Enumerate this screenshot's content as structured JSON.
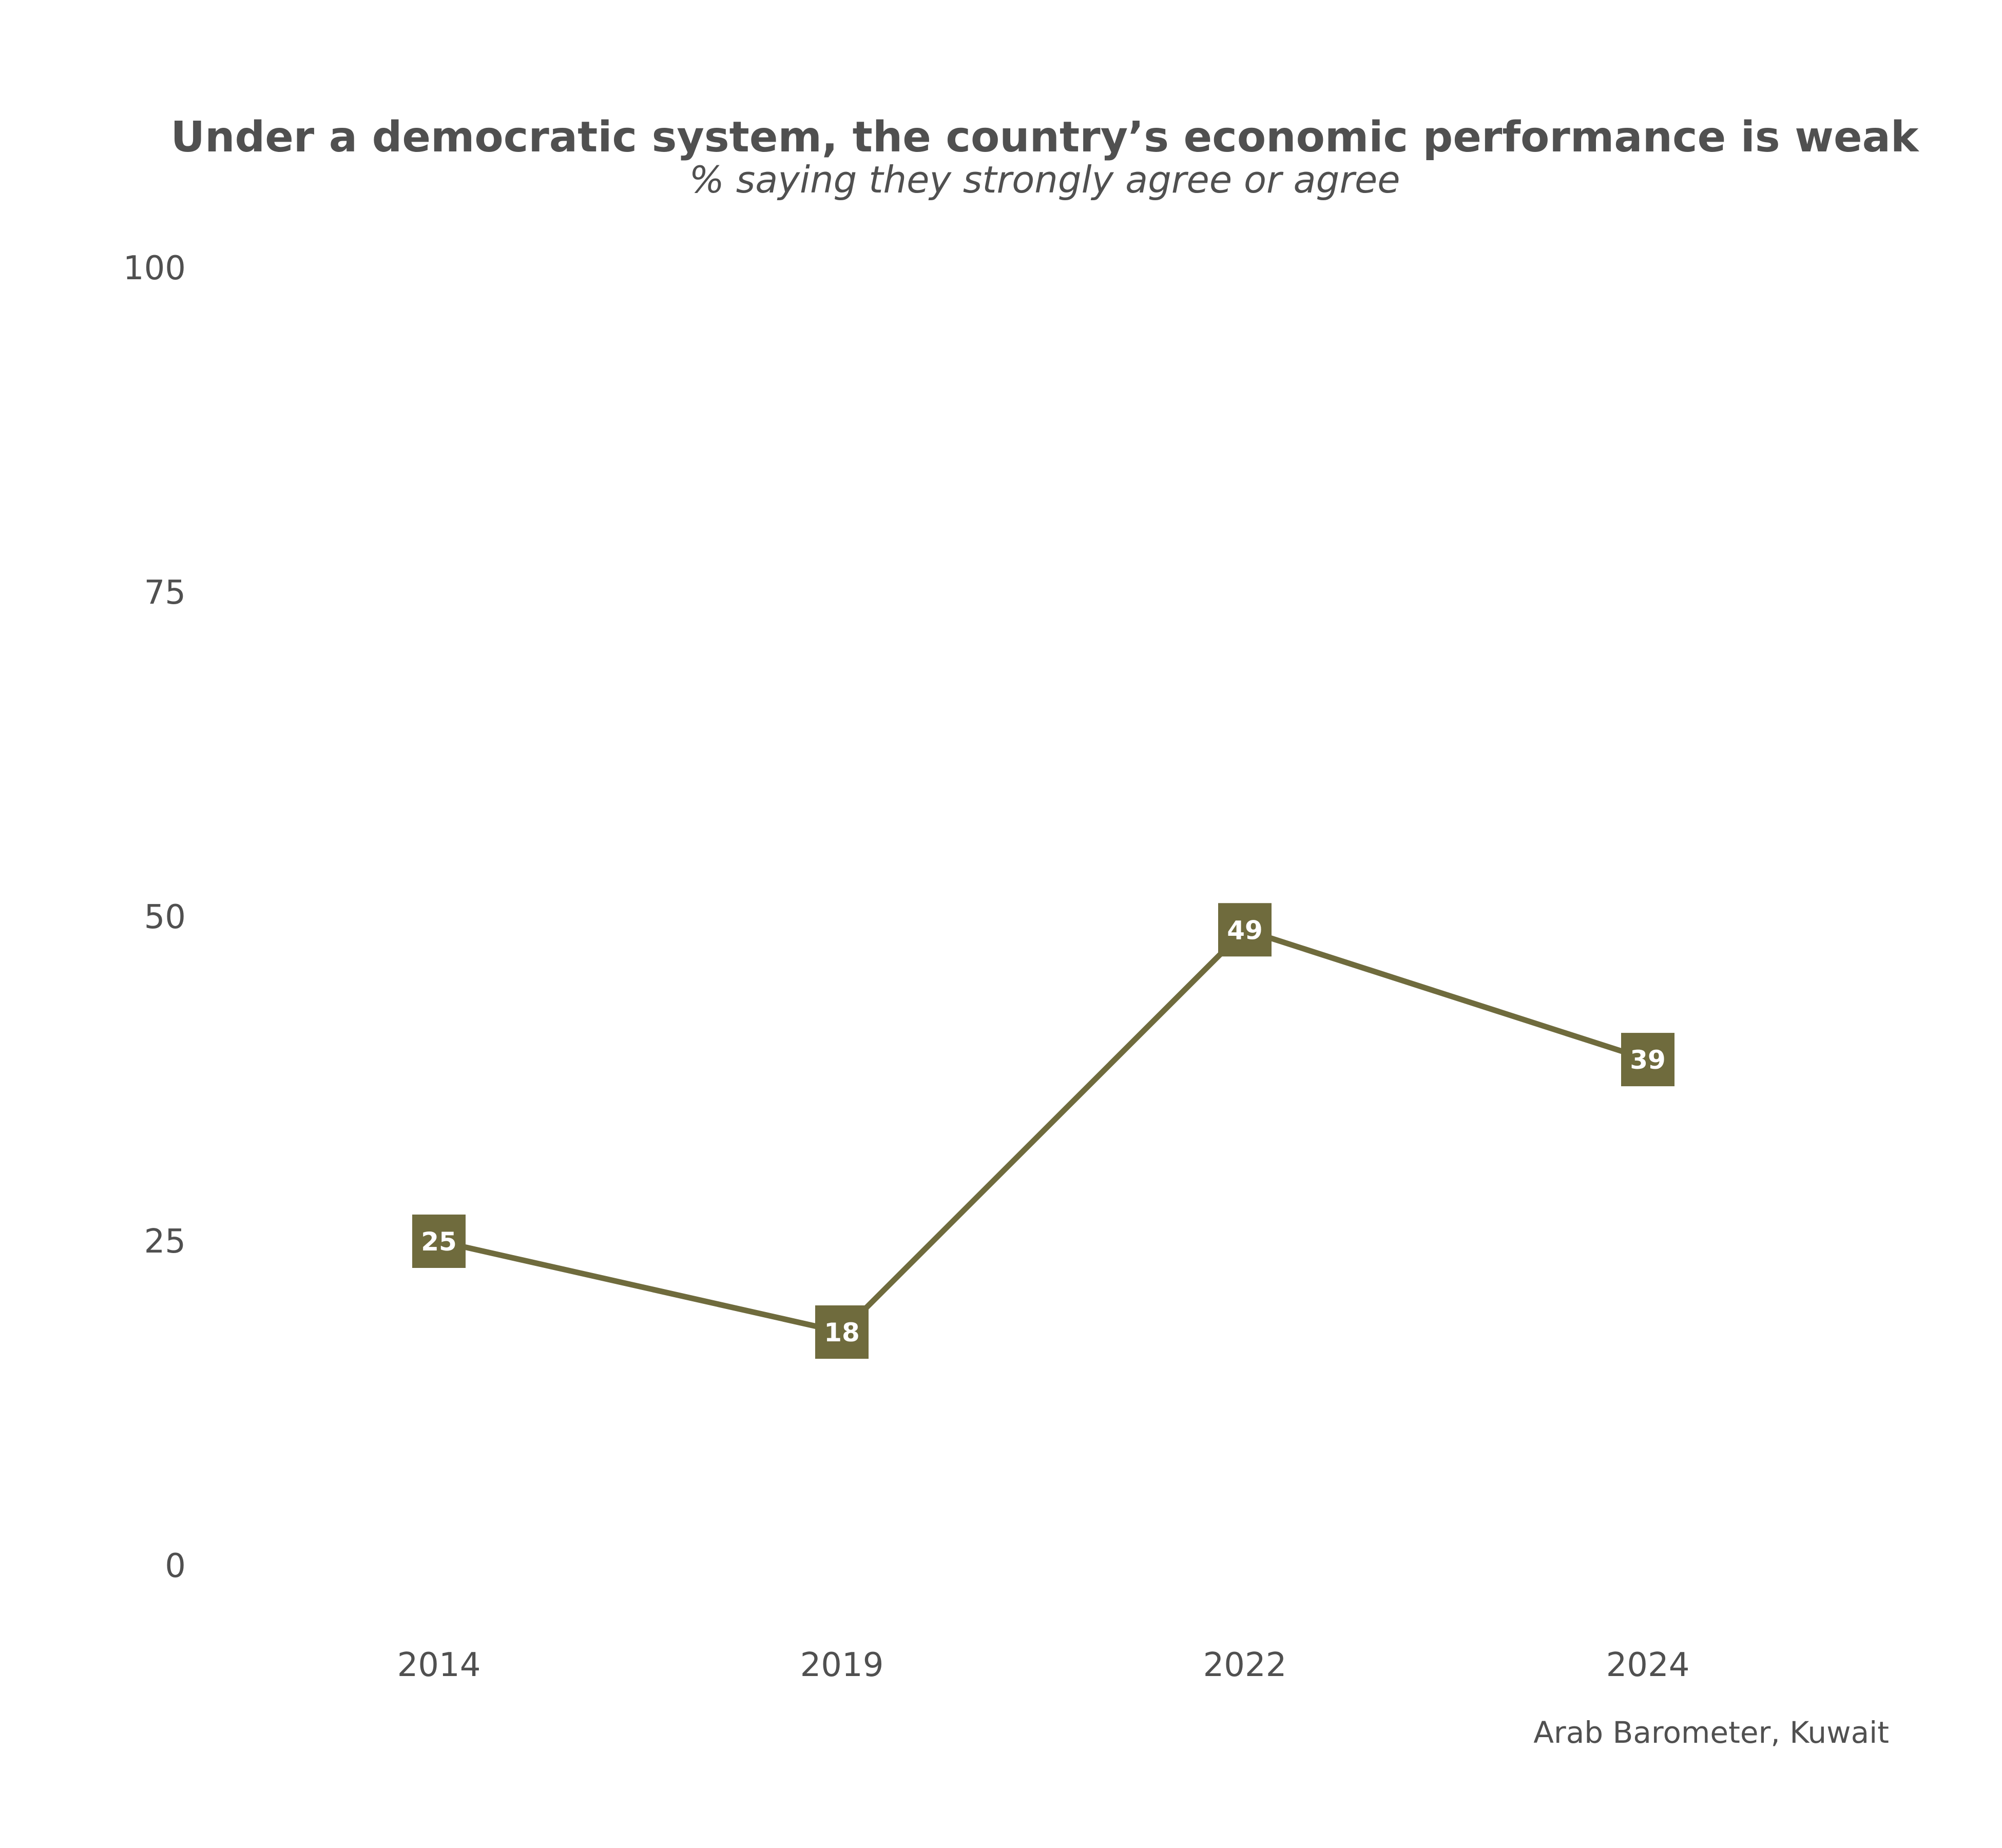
{
  "chart_data": {
    "type": "line",
    "title": "Under a democratic system, the country’s economic performance is weak",
    "subtitle": "% saying they strongly agree or agree",
    "caption": "Arab Barometer, Kuwait",
    "categories": [
      "2014",
      "2019",
      "2022",
      "2024"
    ],
    "values": [
      25,
      18,
      49,
      39
    ],
    "labels": [
      "25",
      "18",
      "49",
      "39"
    ],
    "yticks": [
      0,
      25,
      50,
      75,
      100
    ],
    "ytick_labels": [
      "0",
      "25",
      "50",
      "75",
      "100"
    ],
    "ylim": [
      0,
      100
    ],
    "grid": false,
    "legend": "none",
    "series_color": "#6f6b3d"
  }
}
